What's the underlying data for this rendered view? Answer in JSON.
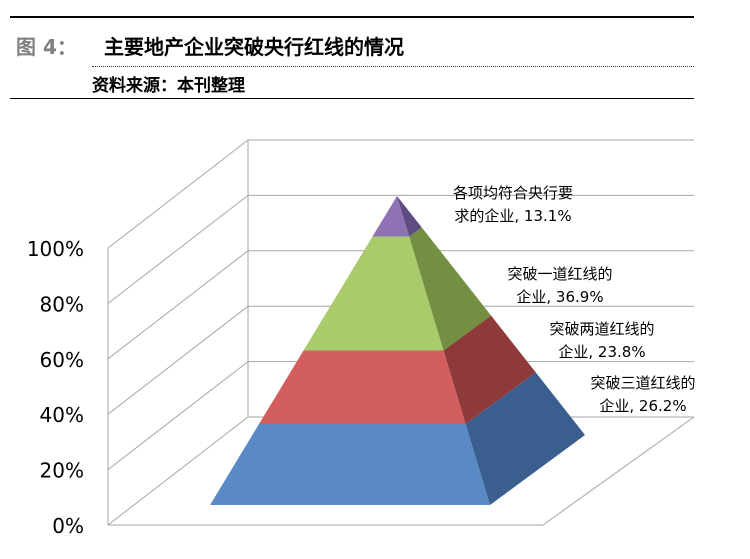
{
  "header": {
    "figure_label": "图 4：",
    "title": "主要地产企业突破央行红线的情况",
    "source": "资料来源：本刊整理"
  },
  "chart_data": {
    "type": "3d-pyramid",
    "yaxis": {
      "ticks": [
        "0%",
        "20%",
        "40%",
        "60%",
        "80%",
        "100%"
      ],
      "ylim": [
        0,
        100
      ]
    },
    "grid": true,
    "layers_bottom_to_top": [
      {
        "label_line1": "突破三道红线的",
        "label_line2": "企业, 26.2%",
        "value": 26.2,
        "front_color": "#5A8AC6",
        "side_color": "#3A5F8F"
      },
      {
        "label_line1": "突破两道红线的",
        "label_line2": "企业, 23.8%",
        "value": 23.8,
        "front_color": "#D25F5D",
        "side_color": "#8E3A3A"
      },
      {
        "label_line1": "突破一道红线的",
        "label_line2": "企业, 36.9%",
        "value": 36.9,
        "front_color": "#A9CB6C",
        "side_color": "#728F42"
      },
      {
        "label_line1": "各项均符合央行要",
        "label_line2": "求的企业, 13.1%",
        "value": 13.1,
        "front_color": "#8E72B3",
        "side_color": "#5D4C80"
      }
    ]
  }
}
